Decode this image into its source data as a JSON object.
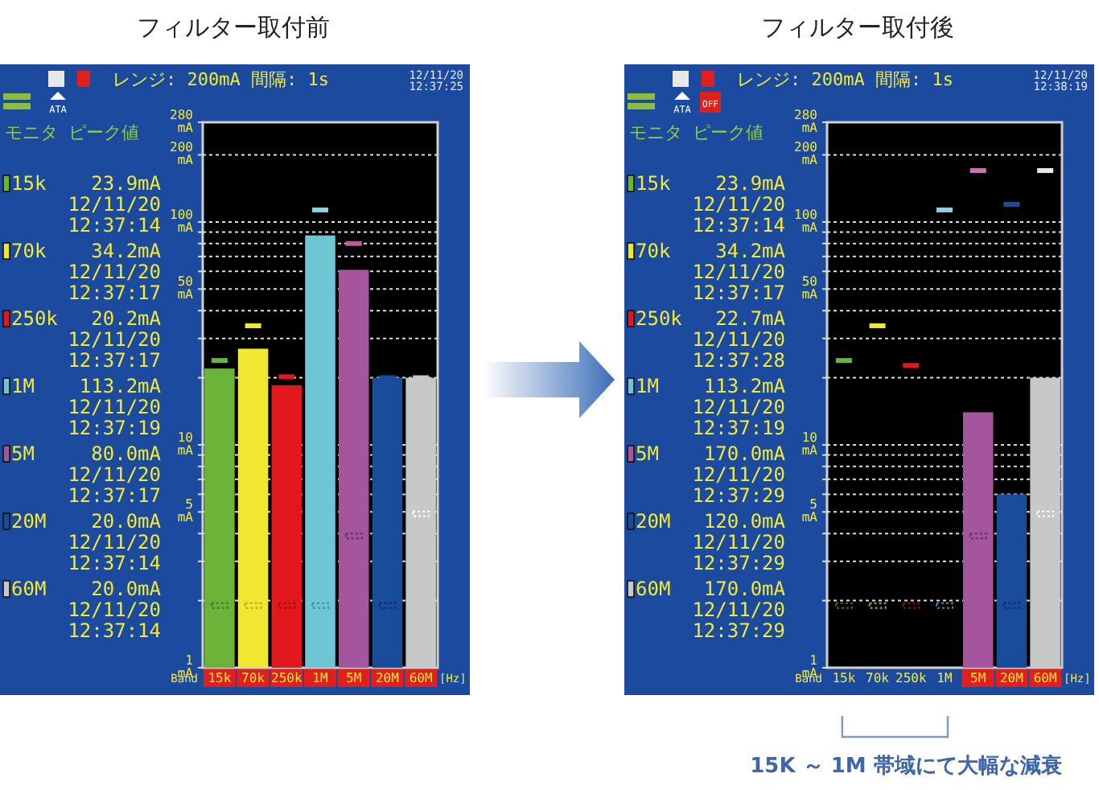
{
  "chart_data": [
    {
      "type": "bar",
      "title": "フィルター取付前",
      "subtitle": "モニタ ピーク値",
      "categories": [
        "15k",
        "70k",
        "250k",
        "1M",
        "5M",
        "20M",
        "60M"
      ],
      "log": true,
      "ylim": [
        1,
        280
      ],
      "grid": "y",
      "yticks": [
        {
          "value": 1,
          "label": "1 mA"
        },
        {
          "value": 2,
          "label": null
        },
        {
          "value": 3,
          "label": null
        },
        {
          "value": 4,
          "label": null
        },
        {
          "value": 5,
          "label": "5 mA"
        },
        {
          "value": 6,
          "label": null
        },
        {
          "value": 7,
          "label": null
        },
        {
          "value": 8,
          "label": null
        },
        {
          "value": 9,
          "label": null
        },
        {
          "value": 10,
          "label": "10 mA"
        },
        {
          "value": 20,
          "label": null
        },
        {
          "value": 30,
          "label": null
        },
        {
          "value": 40,
          "label": null
        },
        {
          "value": 50,
          "label": "50 mA"
        },
        {
          "value": 60,
          "label": null
        },
        {
          "value": 70,
          "label": null
        },
        {
          "value": 80,
          "label": null
        },
        {
          "value": 90,
          "label": null
        },
        {
          "value": 100,
          "label": "100 mA"
        },
        {
          "value": 200,
          "label": "200 mA"
        },
        {
          "value": 280,
          "label": "280 mA"
        }
      ],
      "series": [
        {
          "type": "bar",
          "values": [
            22,
            27,
            18.5,
            87,
            61,
            20,
            20
          ],
          "colors": [
            "#6cb33a",
            "#f0e830",
            "#e2191c",
            "#6ec6d4",
            "#a5559e",
            "#1a4c9c",
            "#c8c8c8"
          ]
        },
        {
          "type": "scatter",
          "x": [
            "15k"
          ],
          "values": [
            23.9
          ],
          "color": "#6cb33a"
        },
        {
          "type": "scatter",
          "x": [
            "70k"
          ],
          "values": [
            34.2
          ],
          "color": "#f0e830"
        },
        {
          "type": "scatter",
          "x": [
            "250k"
          ],
          "values": [
            20.2
          ],
          "color": "#e2191c"
        },
        {
          "type": "scatter",
          "x": [
            "1M"
          ],
          "values": [
            113.2
          ],
          "color": "#8fd0e0"
        },
        {
          "type": "scatter",
          "x": [
            "5M"
          ],
          "values": [
            80.0
          ],
          "color": "#b8609e"
        },
        {
          "type": "scatter",
          "x": [
            "20M"
          ],
          "values": [
            20.0
          ],
          "color": "#1a4c9c"
        },
        {
          "type": "scatter",
          "x": [
            "60M"
          ],
          "values": [
            20.0
          ],
          "color": "#c8c8c8"
        },
        {
          "type": "scatter",
          "line_style": "dotted",
          "x": [
            "15k"
          ],
          "values": [
            1.9
          ],
          "color": "#3d7a22"
        },
        {
          "type": "scatter",
          "line_style": "dotted",
          "x": [
            "70k"
          ],
          "values": [
            1.9
          ],
          "color": "#b0a820"
        },
        {
          "type": "scatter",
          "line_style": "dotted",
          "x": [
            "250k"
          ],
          "values": [
            1.9
          ],
          "color": "#901010"
        },
        {
          "type": "scatter",
          "line_style": "dotted",
          "x": [
            "1M"
          ],
          "values": [
            1.9
          ],
          "color": "#3d8fa0"
        },
        {
          "type": "scatter",
          "line_style": "dotted",
          "x": [
            "5M"
          ],
          "values": [
            3.9
          ],
          "color": "#6a2a64"
        },
        {
          "type": "scatter",
          "line_style": "dotted",
          "x": [
            "20M"
          ],
          "values": [
            1.9
          ],
          "color": "#0d2a6a"
        },
        {
          "type": "scatter",
          "line_style": "dotted",
          "x": [
            "60M"
          ],
          "values": [
            4.9
          ],
          "color": "#ffffff"
        }
      ],
      "annotations": [
        "レンジ: 200mA 間隔: 1s",
        "12/11/20 12:37:25",
        "ATA",
        "Band",
        "[Hz]",
        "15k 23.9mA 12/11/20 12:37:14",
        "70k 34.2mA 12/11/20 12:37:17",
        "250k 20.2mA 12/11/20 12:37:17",
        "1M 113.2mA 12/11/20 12:37:19",
        "5M 80.0mA 12/11/20 12:37:17",
        "20M 20.0mA 12/11/20 12:37:14",
        "60M 20.0mA 12/11/20 12:37:14"
      ]
    },
    {
      "type": "bar",
      "title": "フィルター取付後",
      "subtitle": "モニタ ピーク値",
      "categories": [
        "15k",
        "70k",
        "250k",
        "1M",
        "5M",
        "20M",
        "60M"
      ],
      "log": true,
      "ylim": [
        1,
        280
      ],
      "grid": "y",
      "yticks": [
        {
          "value": 1,
          "label": "1 mA"
        },
        {
          "value": 2,
          "label": null
        },
        {
          "value": 3,
          "label": null
        },
        {
          "value": 4,
          "label": null
        },
        {
          "value": 5,
          "label": "5 mA"
        },
        {
          "value": 6,
          "label": null
        },
        {
          "value": 7,
          "label": null
        },
        {
          "value": 8,
          "label": null
        },
        {
          "value": 9,
          "label": null
        },
        {
          "value": 10,
          "label": "10 mA"
        },
        {
          "value": 20,
          "label": null
        },
        {
          "value": 30,
          "label": null
        },
        {
          "value": 40,
          "label": null
        },
        {
          "value": 50,
          "label": "50 mA"
        },
        {
          "value": 60,
          "label": null
        },
        {
          "value": 70,
          "label": null
        },
        {
          "value": 80,
          "label": null
        },
        {
          "value": 90,
          "label": null
        },
        {
          "value": 100,
          "label": "100 mA"
        },
        {
          "value": 200,
          "label": "200 mA"
        },
        {
          "value": 280,
          "label": "280 mA"
        }
      ],
      "series": [
        {
          "type": "bar",
          "values": [
            null,
            null,
            null,
            null,
            14,
            6.0,
            20
          ],
          "colors": [
            "#6cb33a",
            "#f0e830",
            "#e2191c",
            "#6ec6d4",
            "#a5559e",
            "#1a4c9c",
            "#c8c8c8"
          ]
        },
        {
          "type": "scatter",
          "x": [
            "15k"
          ],
          "values": [
            23.9
          ],
          "color": "#6cb33a"
        },
        {
          "type": "scatter",
          "x": [
            "70k"
          ],
          "values": [
            34.2
          ],
          "color": "#f0e830"
        },
        {
          "type": "scatter",
          "x": [
            "250k"
          ],
          "values": [
            22.7
          ],
          "color": "#e2191c"
        },
        {
          "type": "scatter",
          "x": [
            "1M"
          ],
          "values": [
            113.2
          ],
          "color": "#8fd0e0"
        },
        {
          "type": "scatter",
          "x": [
            "5M"
          ],
          "values": [
            170.0
          ],
          "color": "#d070b0"
        },
        {
          "type": "scatter",
          "x": [
            "20M"
          ],
          "values": [
            120.0
          ],
          "color": "#1a4c9c"
        },
        {
          "type": "scatter",
          "x": [
            "60M"
          ],
          "values": [
            170.0
          ],
          "color": "#e8e8e8"
        },
        {
          "type": "scatter",
          "line_style": "dotted",
          "x": [
            "15k"
          ],
          "values": [
            1.9
          ],
          "color": "#3d7a22"
        },
        {
          "type": "scatter",
          "line_style": "dotted",
          "x": [
            "70k"
          ],
          "values": [
            1.9
          ],
          "color": "#b0a820"
        },
        {
          "type": "scatter",
          "line_style": "dotted",
          "x": [
            "250k"
          ],
          "values": [
            1.9
          ],
          "color": "#901010"
        },
        {
          "type": "scatter",
          "line_style": "dotted",
          "x": [
            "1M"
          ],
          "values": [
            1.9
          ],
          "color": "#3d8fa0"
        },
        {
          "type": "scatter",
          "line_style": "dotted",
          "x": [
            "5M"
          ],
          "values": [
            3.9
          ],
          "color": "#6a2a64"
        },
        {
          "type": "scatter",
          "line_style": "dotted",
          "x": [
            "20M"
          ],
          "values": [
            1.9
          ],
          "color": "#0d2a6a"
        },
        {
          "type": "scatter",
          "line_style": "dotted",
          "x": [
            "60M"
          ],
          "values": [
            4.9
          ],
          "color": "#ffffff"
        }
      ],
      "annotations": [
        "レンジ: 200mA 間隔: 1s",
        "12/11/20 12:38:19",
        "ATA",
        "Band",
        "[Hz]",
        "15k 23.9mA 12/11/20 12:37:14",
        "70k 34.2mA 12/11/20 12:37:17",
        "250k 22.7mA 12/11/20 12:37:28",
        "1M 113.2mA 12/11/20 12:37:19",
        "5M 170.0mA 12/11/20 12:37:29",
        "20M 120.0mA 12/11/20 12:37:29",
        "60M 170.0mA 12/11/20 12:37:29",
        "OFF",
        "15K ～ 1M 帯域にて大幅な減衰"
      ]
    }
  ]
}
